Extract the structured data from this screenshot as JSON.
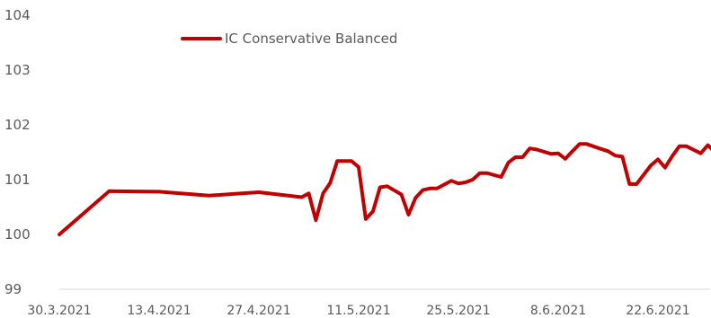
{
  "chart_data": {
    "type": "line",
    "title": "",
    "xlabel": "",
    "ylabel": "",
    "ylim": [
      99,
      104
    ],
    "yticks": [
      "99",
      "100",
      "101",
      "102",
      "103",
      "104"
    ],
    "xticks": [
      "30.3.2021",
      "13.4.2021",
      "27.4.2021",
      "11.5.2021",
      "25.5.2021",
      "8.6.2021",
      "22.6.2021"
    ],
    "legend_position": "top-left",
    "grid": false,
    "series_color": "#c00000",
    "series": [
      {
        "name": "IC Conservative Balanced",
        "x": [
          "2021-03-30",
          "2021-04-06",
          "2021-04-13",
          "2021-04-20",
          "2021-04-27",
          "2021-05-03",
          "2021-05-04",
          "2021-05-05",
          "2021-05-06",
          "2021-05-07",
          "2021-05-08",
          "2021-05-10",
          "2021-05-11",
          "2021-05-12",
          "2021-05-13",
          "2021-05-14",
          "2021-05-15",
          "2021-05-17",
          "2021-05-18",
          "2021-05-19",
          "2021-05-20",
          "2021-05-21",
          "2021-05-22",
          "2021-05-24",
          "2021-05-25",
          "2021-05-26",
          "2021-05-27",
          "2021-05-28",
          "2021-05-29",
          "2021-05-31",
          "2021-06-01",
          "2021-06-02",
          "2021-06-03",
          "2021-06-04",
          "2021-06-05",
          "2021-06-07",
          "2021-06-08",
          "2021-06-09",
          "2021-06-10",
          "2021-06-11",
          "2021-06-12",
          "2021-06-14",
          "2021-06-15",
          "2021-06-16",
          "2021-06-17",
          "2021-06-18",
          "2021-06-19",
          "2021-06-21",
          "2021-06-22",
          "2021-06-23",
          "2021-06-24",
          "2021-06-25",
          "2021-06-26",
          "2021-06-28",
          "2021-06-29",
          "2021-06-30"
        ],
        "values": [
          100.0,
          100.79,
          100.78,
          100.71,
          100.77,
          100.68,
          100.75,
          100.26,
          100.75,
          100.94,
          101.34,
          101.34,
          101.23,
          100.28,
          100.42,
          100.86,
          100.88,
          100.73,
          100.36,
          100.67,
          100.81,
          100.84,
          100.84,
          100.98,
          100.93,
          100.95,
          101.0,
          101.12,
          101.12,
          101.05,
          101.31,
          101.41,
          101.41,
          101.57,
          101.55,
          101.47,
          101.48,
          101.38,
          101.52,
          101.65,
          101.65,
          101.56,
          101.52,
          101.44,
          101.42,
          100.92,
          100.92,
          101.26,
          101.37,
          101.22,
          101.43,
          101.61,
          101.61,
          101.48,
          101.63,
          101.5
        ]
      }
    ]
  }
}
